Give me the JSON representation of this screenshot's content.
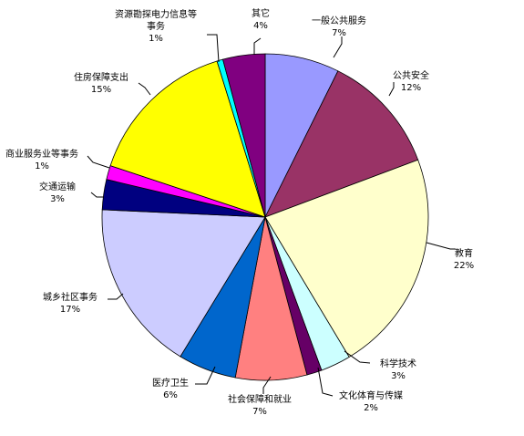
{
  "chart_data": {
    "type": "pie",
    "title": "",
    "start_angle_deg": 90,
    "direction": "clockwise",
    "slices": [
      {
        "label": "一般公共服务",
        "value": 7.4,
        "pct_label": "7%",
        "color": "#9999ff"
      },
      {
        "label": "公共安全",
        "value": 12.0,
        "pct_label": "12%",
        "color": "#993366"
      },
      {
        "label": "教育",
        "value": 22.2,
        "pct_label": "22%",
        "color": "#ffffcc"
      },
      {
        "label": "科学技术",
        "value": 3.0,
        "pct_label": "3%",
        "color": "#ccffff"
      },
      {
        "label": "文化体育与传媒",
        "value": 1.5,
        "pct_label": "2%",
        "color": "#660066"
      },
      {
        "label": "社会保障和就业",
        "value": 7.1,
        "pct_label": "7%",
        "color": "#ff8080"
      },
      {
        "label": "医疗卫生",
        "value": 5.8,
        "pct_label": "6%",
        "color": "#0066cc"
      },
      {
        "label": "城乡社区事务",
        "value": 17.1,
        "pct_label": "17%",
        "color": "#ccccff"
      },
      {
        "label": "交通运输",
        "value": 3.0,
        "pct_label": "3%",
        "color": "#000080"
      },
      {
        "label": "商业服务业等事务",
        "value": 1.4,
        "pct_label": "1%",
        "color": "#ff00ff"
      },
      {
        "label": "住房保障支出",
        "value": 15.2,
        "pct_label": "15%",
        "color": "#ffff00"
      },
      {
        "label": "资源勘探电力信息等事务",
        "value": 0.6,
        "pct_label": "1%",
        "color": "#00ffff"
      },
      {
        "label": "其它",
        "value": 4.2,
        "pct_label": "4%",
        "color": "#800080"
      }
    ]
  }
}
